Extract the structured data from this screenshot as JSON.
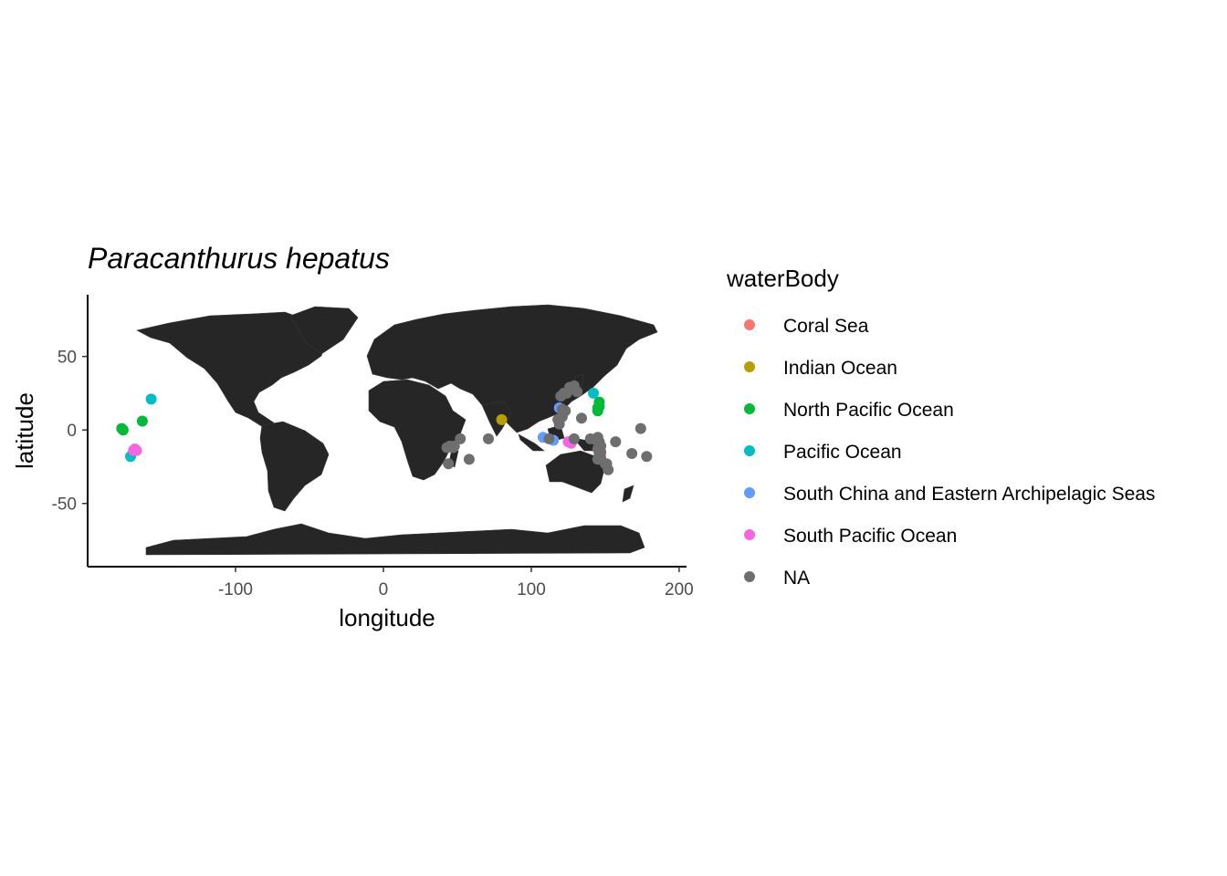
{
  "chart_data": {
    "type": "scatter",
    "title": "Paracanthurus hepatus",
    "xlabel": "longitude",
    "ylabel": "latitude",
    "xlim": [
      -200,
      205
    ],
    "ylim": [
      -93,
      92
    ],
    "xticks": [
      -100,
      0,
      100,
      200
    ],
    "xtick_labels": [
      "-100",
      "0",
      "100",
      "200"
    ],
    "yticks": [
      -50,
      0,
      50
    ],
    "ytick_labels": [
      "-50",
      "0",
      "50"
    ],
    "grid": false,
    "legend": {
      "title": "waterBody",
      "position": "right",
      "entries": [
        {
          "label": "Coral Sea",
          "color": "#F8766D"
        },
        {
          "label": "Indian Ocean",
          "color": "#B79F00"
        },
        {
          "label": "North Pacific Ocean",
          "color": "#00BA38"
        },
        {
          "label": "Pacific Ocean",
          "color": "#00BFC4"
        },
        {
          "label": "South China and Eastern Archipelagic Seas",
          "color": "#619CFF"
        },
        {
          "label": "South Pacific Ocean",
          "color": "#F564E3"
        },
        {
          "label": "NA",
          "color": "#6E6E6E"
        }
      ]
    },
    "series": [
      {
        "name": "Coral Sea",
        "color": "#F8766D",
        "points": [
          [
            146,
            -17
          ],
          [
            147,
            -18
          ],
          [
            146,
            -16
          ]
        ]
      },
      {
        "name": "Indian Ocean",
        "color": "#B79F00",
        "points": [
          [
            80,
            7
          ]
        ]
      },
      {
        "name": "North Pacific Ocean",
        "color": "#00BA38",
        "points": [
          [
            -177,
            1
          ],
          [
            -176,
            0
          ],
          [
            -163,
            6
          ],
          [
            145,
            15
          ],
          [
            146,
            19
          ],
          [
            145,
            13
          ],
          [
            146,
            16
          ]
        ]
      },
      {
        "name": "Pacific Ocean",
        "color": "#00BFC4",
        "points": [
          [
            -157,
            21
          ],
          [
            -171,
            -18
          ],
          [
            142,
            25
          ]
        ]
      },
      {
        "name": "South China and Eastern Archipelagic Seas",
        "color": "#619CFF",
        "points": [
          [
            108,
            -5
          ],
          [
            119,
            15
          ],
          [
            115,
            -7
          ]
        ]
      },
      {
        "name": "South Pacific Ocean",
        "color": "#F564E3",
        "points": [
          [
            -169,
            -14
          ],
          [
            -167,
            -14
          ],
          [
            -168,
            -13
          ],
          [
            125,
            -8
          ],
          [
            127,
            -9
          ],
          [
            126,
            -8
          ]
        ]
      },
      {
        "name": "NA",
        "color": "#6E6E6E",
        "points": [
          [
            43,
            -12
          ],
          [
            45,
            -11
          ],
          [
            47,
            -12
          ],
          [
            48,
            -11
          ],
          [
            52,
            -6
          ],
          [
            44,
            -23
          ],
          [
            58,
            -20
          ],
          [
            71,
            -6
          ],
          [
            112,
            -6
          ],
          [
            119,
            4
          ],
          [
            118,
            7
          ],
          [
            121,
            9
          ],
          [
            120,
            23
          ],
          [
            122,
            25
          ],
          [
            124,
            25
          ],
          [
            121,
            14
          ],
          [
            123,
            13
          ],
          [
            126,
            29
          ],
          [
            129,
            30
          ],
          [
            134,
            8
          ],
          [
            131,
            26
          ],
          [
            145,
            -5
          ],
          [
            144,
            -7
          ],
          [
            146,
            -8
          ],
          [
            147,
            -11
          ],
          [
            145,
            -13
          ],
          [
            146,
            -14
          ],
          [
            147,
            -15
          ],
          [
            146,
            -17
          ],
          [
            147,
            -20
          ],
          [
            151,
            -23
          ],
          [
            152,
            -27
          ],
          [
            150,
            -23
          ],
          [
            157,
            -8
          ],
          [
            168,
            -16
          ],
          [
            174,
            1
          ],
          [
            178,
            -18
          ],
          [
            145,
            -20
          ],
          [
            129,
            -6
          ],
          [
            140,
            -6
          ]
        ]
      }
    ]
  }
}
